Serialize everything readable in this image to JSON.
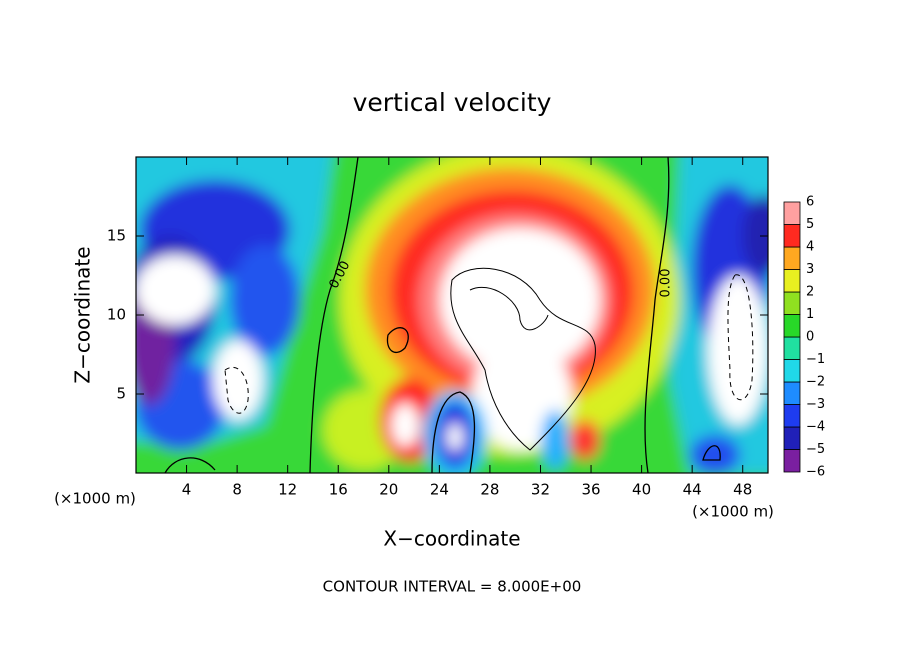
{
  "chart_data": {
    "type": "contour",
    "title": "vertical velocity",
    "xlabel": "X−coordinate",
    "ylabel": "Z−coordinate",
    "x_unit": "(×1000 m)",
    "xlim": [
      0,
      50
    ],
    "xticks": [
      4,
      8,
      12,
      16,
      20,
      24,
      28,
      32,
      36,
      40,
      44,
      48
    ],
    "ylim": [
      0,
      20
    ],
    "yticks": [
      5,
      10,
      15
    ],
    "contour_label": "0.00",
    "contour_interval": "CONTOUR INTERVAL = 8.000E+00",
    "colorbar": {
      "levels": [
        -6,
        -5,
        -4,
        -3,
        -2,
        -1,
        0,
        1,
        2,
        3,
        4,
        5,
        6
      ],
      "labels": [
        {
          "value": -6,
          "label": "−6"
        },
        {
          "value": -5,
          "label": "−5"
        },
        {
          "value": -4,
          "label": "−4"
        },
        {
          "value": -3,
          "label": "−3"
        },
        {
          "value": -2,
          "label": "−2"
        },
        {
          "value": -1,
          "label": "−1"
        },
        0,
        1,
        2,
        3,
        4,
        5,
        6
      ],
      "colors": [
        "#7a1fa0",
        "#2020b8",
        "#1e3cf0",
        "#1e8cff",
        "#20d8e8",
        "#20e0a0",
        "#28d828",
        "#90e020",
        "#e8f020",
        "#ffa820",
        "#ff2a20",
        "#ffa0a0"
      ]
    }
  }
}
